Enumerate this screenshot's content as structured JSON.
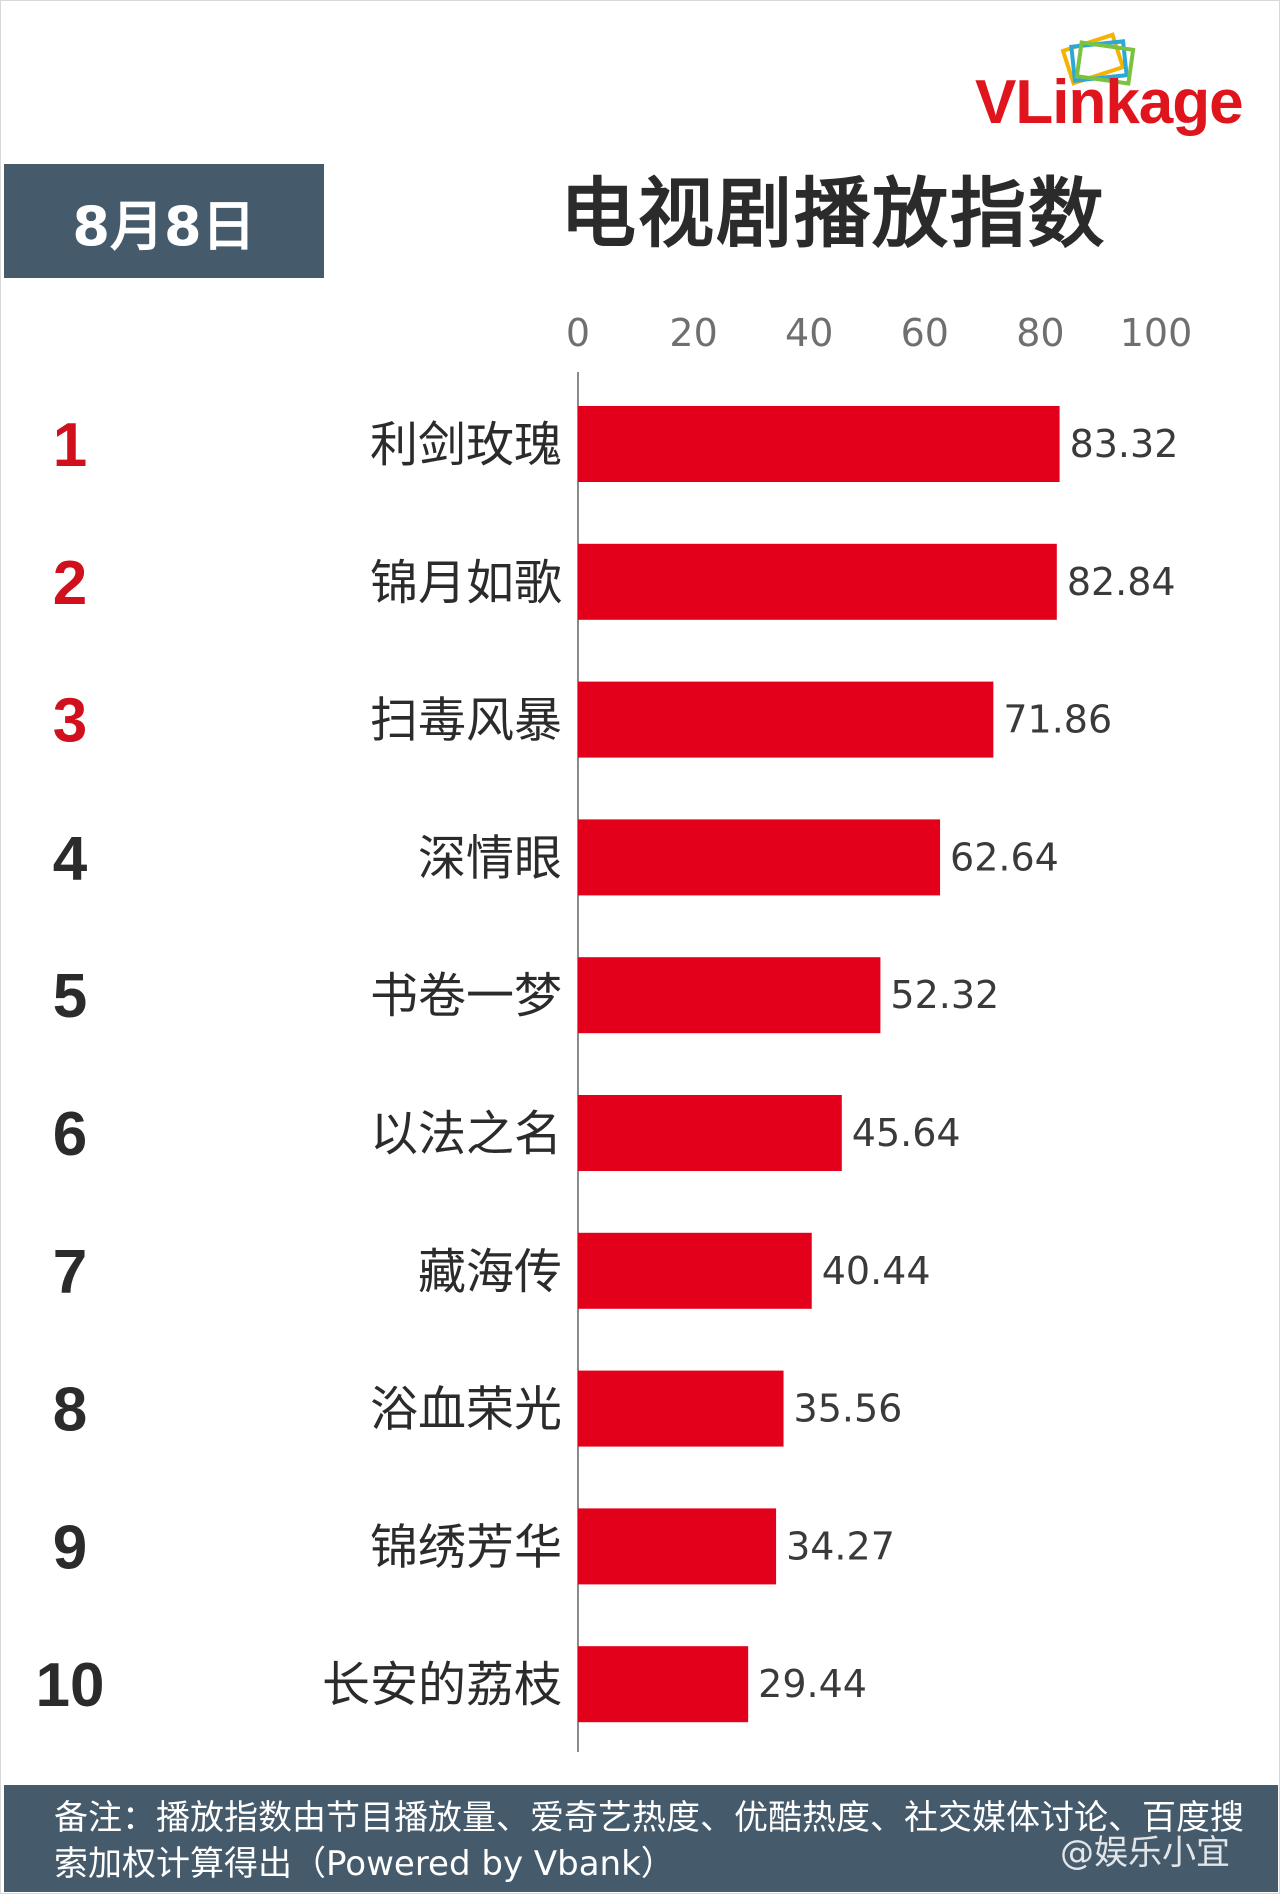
{
  "logo": {
    "text": "VLinkage"
  },
  "date_label": "8月8日",
  "watermark": "@娱乐小宜",
  "note": "备注：播放指数由节目播放量、爱奇艺热度、优酷热度、社交媒体讨论、百度搜索加权计算得出（Powered by Vbank）",
  "colors": {
    "bar": "#e3001b",
    "header_bg": "#455a6b",
    "top_rank": "#d0101c",
    "rank": "#2b2b2b"
  },
  "chart_data": {
    "type": "bar",
    "orientation": "horizontal",
    "title": "电视剧播放指数",
    "xlim": [
      0,
      100
    ],
    "x_ticks": [
      0,
      20,
      40,
      60,
      80,
      100
    ],
    "grid": false,
    "ranks": [
      "1",
      "2",
      "3",
      "4",
      "5",
      "6",
      "7",
      "8",
      "9",
      "10"
    ],
    "categories": [
      "利剑玫瑰",
      "锦月如歌",
      "扫毒风暴",
      "深情眼",
      "书卷一梦",
      "以法之名",
      "藏海传",
      "浴血荣光",
      "锦绣芳华",
      "长安的荔枝"
    ],
    "values": [
      83.32,
      82.84,
      71.86,
      62.64,
      52.32,
      45.64,
      40.44,
      35.56,
      34.27,
      29.44
    ],
    "value_labels": [
      "83.32",
      "82.84",
      "71.86",
      "62.64",
      "52.32",
      "45.64",
      "40.44",
      "35.56",
      "34.27",
      "29.44"
    ]
  }
}
